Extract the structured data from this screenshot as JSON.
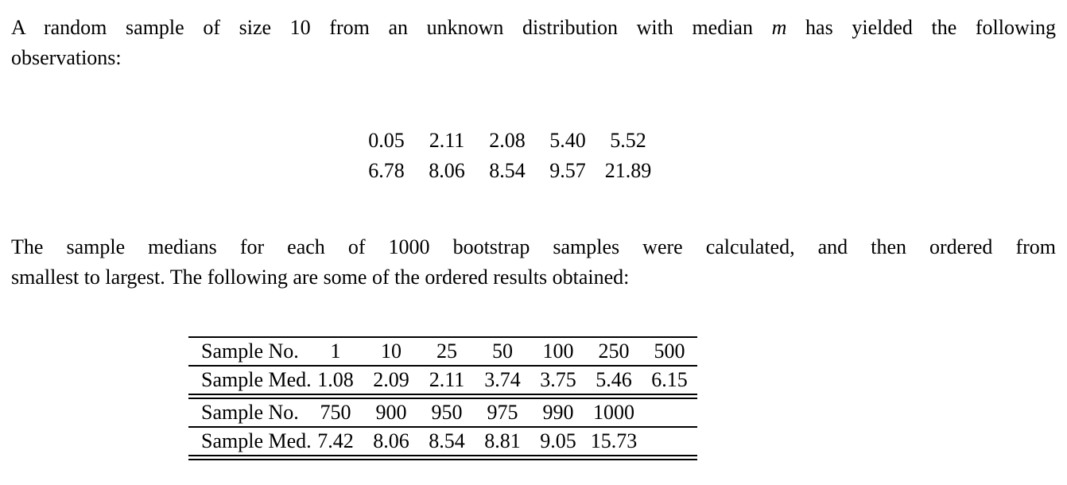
{
  "page": {
    "background": "#ffffff",
    "text_color": "#000000"
  },
  "paragraph1": {
    "line1_before_math": "A random sample of size 10 from an unknown distribution with median",
    "math_symbol": "m",
    "line1_after_math": "has yielded the following",
    "line2": "observations:"
  },
  "observations": {
    "rows": [
      [
        "0.05",
        "2.11",
        "2.08",
        "5.40",
        "5.52"
      ],
      [
        "6.78",
        "8.06",
        "8.54",
        "9.57",
        "21.89"
      ]
    ]
  },
  "paragraph2": {
    "line1": "The sample medians for each of 1000 bootstrap samples were calculated, and then ordered from",
    "line2": "smallest to largest. The following are some of the ordered results obtained:"
  },
  "bootstrap_table": {
    "sections": [
      {
        "rows": [
          {
            "label": "Sample No.",
            "values": [
              "1",
              "10",
              "25",
              "50",
              "100",
              "250",
              "500"
            ]
          },
          {
            "label": "Sample Med.",
            "values": [
              "1.08",
              "2.09",
              "2.11",
              "3.74",
              "3.75",
              "5.46",
              "6.15"
            ]
          }
        ]
      },
      {
        "rows": [
          {
            "label": "Sample No.",
            "values": [
              "750",
              "900",
              "950",
              "975",
              "990",
              "1000",
              ""
            ]
          },
          {
            "label": "Sample Med.",
            "values": [
              "7.42",
              "8.06",
              "8.54",
              "8.81",
              "9.05",
              "15.73",
              ""
            ]
          }
        ]
      }
    ]
  }
}
